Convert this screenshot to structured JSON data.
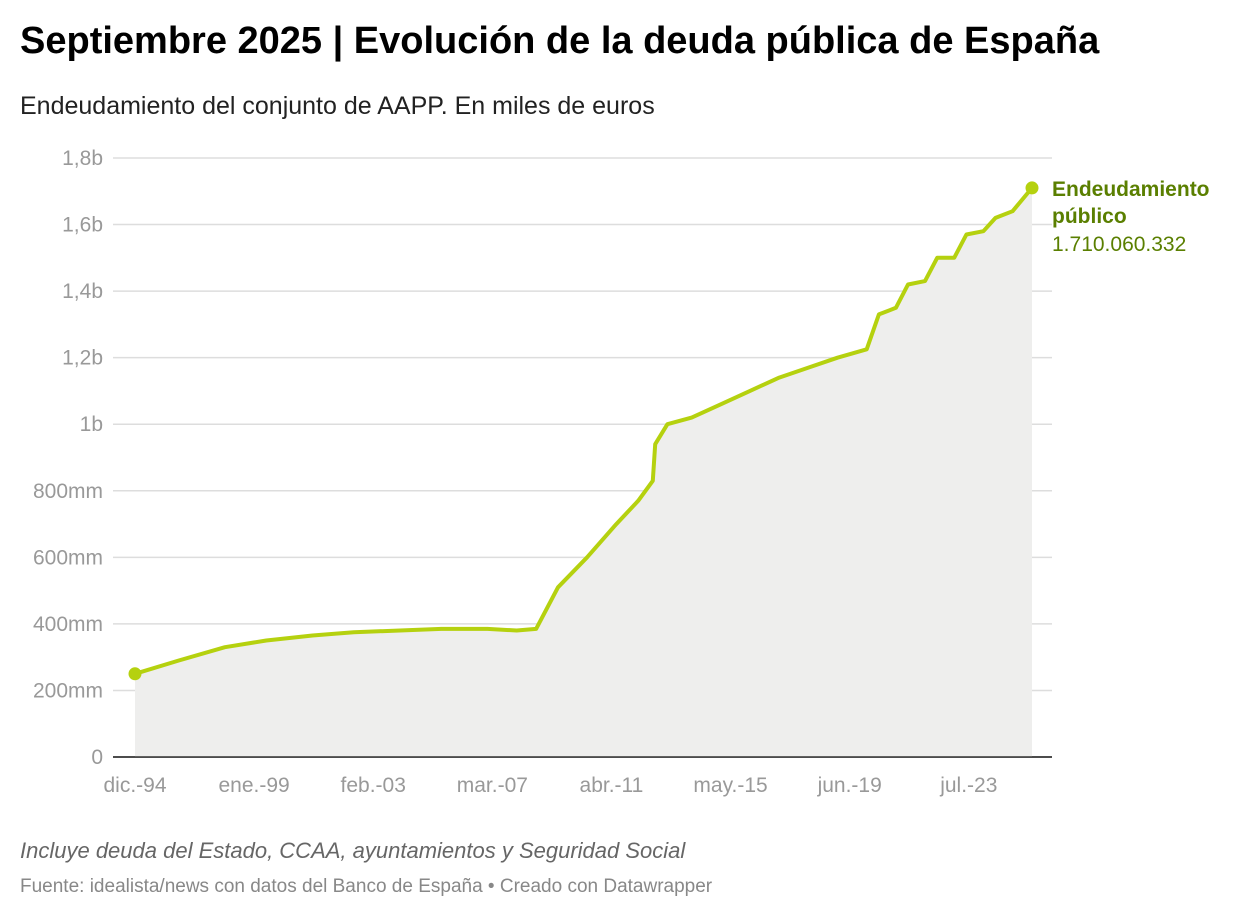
{
  "title": "Septiembre 2025 | Evolución de la deuda pública de España",
  "subtitle": "Endeudamiento del conjunto de AAPP. En miles de euros",
  "note": "Incluye deuda del Estado, CCAA, ayuntamientos y Seguridad Social",
  "source": "Fuente: idealista/news con datos del Banco de España • Creado con Datawrapper",
  "chart_data": {
    "type": "area",
    "title": "Septiembre 2025 | Evolución de la deuda pública de España",
    "ylim": [
      0,
      1800000000
    ],
    "grid": true,
    "y_ticks": [
      {
        "value": 0,
        "label": "0"
      },
      {
        "value": 200000000,
        "label": "200mm"
      },
      {
        "value": 400000000,
        "label": "400mm"
      },
      {
        "value": 600000000,
        "label": "600mm"
      },
      {
        "value": 800000000,
        "label": "800mm"
      },
      {
        "value": 1000000000,
        "label": "1b"
      },
      {
        "value": 1200000000,
        "label": "1,2b"
      },
      {
        "value": 1400000000,
        "label": "1,4b"
      },
      {
        "value": 1600000000,
        "label": "1,6b"
      },
      {
        "value": 1800000000,
        "label": "1,8b"
      }
    ],
    "x_ticks": [
      {
        "value": "1994-12",
        "label": "dic.-94"
      },
      {
        "value": "1999-01",
        "label": "ene.-99"
      },
      {
        "value": "2003-02",
        "label": "feb.-03"
      },
      {
        "value": "2007-03",
        "label": "mar.-07"
      },
      {
        "value": "2011-04",
        "label": "abr.-11"
      },
      {
        "value": "2015-05",
        "label": "may.-15"
      },
      {
        "value": "2019-06",
        "label": "jun.-19"
      },
      {
        "value": "2023-07",
        "label": "jul.-23"
      }
    ],
    "colors": {
      "line": "#b5d10f",
      "area": "#eeeeed",
      "label": "#5a7f00"
    },
    "series": [
      {
        "name": "Endeudamiento público",
        "end_label": "1.710.060.332",
        "x": [
          "1994-12",
          "1996-06",
          "1998-01",
          "1999-06",
          "2001-01",
          "2002-06",
          "2004-01",
          "2005-06",
          "2007-01",
          "2008-01",
          "2008-09",
          "2009-06",
          "2010-06",
          "2011-06",
          "2012-03",
          "2012-09",
          "2012-10",
          "2013-03",
          "2014-01",
          "2015-01",
          "2016-01",
          "2017-01",
          "2018-01",
          "2019-01",
          "2020-01",
          "2020-06",
          "2021-01",
          "2021-06",
          "2022-01",
          "2022-06",
          "2023-01",
          "2023-06",
          "2024-01",
          "2024-06",
          "2025-01",
          "2025-09"
        ],
        "y": [
          250000000,
          290000000,
          330000000,
          350000000,
          365000000,
          375000000,
          380000000,
          385000000,
          385000000,
          380000000,
          385000000,
          510000000,
          600000000,
          700000000,
          770000000,
          830000000,
          940000000,
          1000000000,
          1020000000,
          1060000000,
          1100000000,
          1140000000,
          1170000000,
          1200000000,
          1225000000,
          1330000000,
          1350000000,
          1420000000,
          1430000000,
          1500000000,
          1500000000,
          1570000000,
          1580000000,
          1620000000,
          1640000000,
          1710060332
        ]
      }
    ]
  }
}
